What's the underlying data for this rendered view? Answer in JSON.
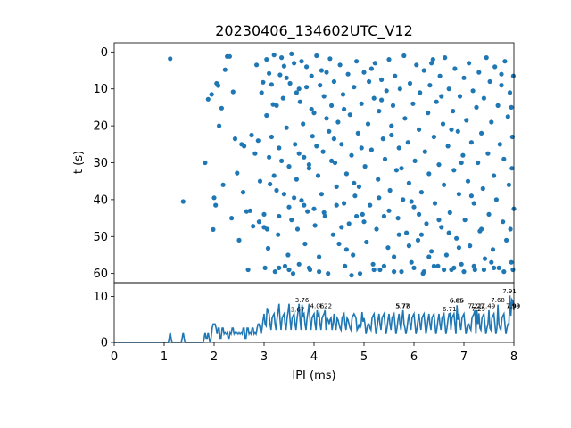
{
  "chart_data": [
    {
      "type": "scatter",
      "title": "20230406_134602UTC_V12",
      "ylabel": "t (s)",
      "xlim": [
        0,
        8
      ],
      "ylim": [
        62.5,
        -2.5
      ],
      "y_inverted": true,
      "y_ticks": [
        "0",
        "10",
        "20",
        "30",
        "40",
        "50",
        "60"
      ],
      "marker_color": "#1f77b4",
      "points": [
        [
          1.12,
          1.8
        ],
        [
          1.38,
          40.5
        ],
        [
          1.82,
          30.0
        ],
        [
          1.88,
          12.8
        ],
        [
          1.95,
          11.5
        ],
        [
          1.98,
          48.1
        ],
        [
          2.0,
          39.5
        ],
        [
          2.03,
          41.5
        ],
        [
          2.05,
          8.5
        ],
        [
          2.08,
          9.1
        ],
        [
          2.1,
          20.0
        ],
        [
          2.15,
          15.2
        ],
        [
          2.18,
          36.0
        ],
        [
          2.22,
          4.8
        ],
        [
          2.26,
          1.2
        ],
        [
          2.31,
          1.2
        ],
        [
          2.35,
          45.0
        ],
        [
          2.38,
          10.8
        ],
        [
          2.42,
          23.5
        ],
        [
          2.46,
          32.8
        ],
        [
          2.5,
          51.0
        ],
        [
          2.55,
          25.0
        ],
        [
          2.58,
          38.0
        ],
        [
          2.6,
          25.5
        ],
        [
          2.65,
          43.2
        ],
        [
          2.68,
          59.0
        ],
        [
          2.72,
          43.0
        ],
        [
          2.75,
          22.5
        ],
        [
          2.78,
          47.2
        ],
        [
          2.82,
          27.5
        ],
        [
          2.85,
          3.5
        ],
        [
          2.88,
          24.0
        ],
        [
          2.92,
          35.0
        ],
        [
          2.95,
          11.0
        ],
        [
          2.98,
          8.2
        ],
        [
          3.0,
          44.0
        ],
        [
          3.02,
          58.5
        ],
        [
          3.05,
          17.2
        ],
        [
          3.06,
          48.0
        ],
        [
          3.08,
          53.2
        ],
        [
          3.1,
          5.8
        ],
        [
          3.12,
          35.8
        ],
        [
          3.15,
          23.0
        ],
        [
          3.18,
          14.2
        ],
        [
          3.2,
          0.8
        ],
        [
          3.22,
          59.5
        ],
        [
          3.25,
          37.5
        ],
        [
          3.28,
          49.5
        ],
        [
          3.3,
          44.5
        ],
        [
          3.32,
          6.2
        ],
        [
          3.35,
          29.5
        ],
        [
          3.38,
          12.5
        ],
        [
          3.4,
          3.8
        ],
        [
          3.42,
          58.0
        ],
        [
          3.45,
          20.5
        ],
        [
          3.48,
          55.0
        ],
        [
          3.5,
          42.0
        ],
        [
          3.52,
          8.5
        ],
        [
          3.55,
          45.5
        ],
        [
          3.58,
          60.0
        ],
        [
          3.6,
          3.0
        ],
        [
          3.62,
          25.0
        ],
        [
          3.65,
          34.5
        ],
        [
          3.67,
          48.0
        ],
        [
          3.7,
          10.0
        ],
        [
          3.72,
          13.5
        ],
        [
          3.75,
          40.2
        ],
        [
          3.78,
          19.5
        ],
        [
          3.8,
          28.5
        ],
        [
          3.82,
          52.0
        ],
        [
          3.85,
          4.0
        ],
        [
          3.87,
          43.2
        ],
        [
          3.9,
          31.5
        ],
        [
          3.92,
          59.0
        ],
        [
          3.95,
          6.5
        ],
        [
          3.97,
          22.8
        ],
        [
          4.0,
          16.5
        ],
        [
          4.02,
          47.0
        ],
        [
          4.05,
          1.0
        ],
        [
          4.08,
          33.5
        ],
        [
          4.1,
          55.5
        ],
        [
          4.12,
          9.0
        ],
        [
          4.15,
          38.5
        ],
        [
          4.18,
          27.0
        ],
        [
          4.2,
          12.0
        ],
        [
          4.22,
          44.5
        ],
        [
          4.25,
          5.5
        ],
        [
          4.28,
          60.0
        ],
        [
          4.3,
          21.5
        ],
        [
          4.32,
          1.8
        ],
        [
          4.35,
          14.5
        ],
        [
          4.38,
          49.5
        ],
        [
          4.4,
          8.0
        ],
        [
          4.42,
          30.0
        ],
        [
          4.45,
          36.5
        ],
        [
          4.48,
          19.0
        ],
        [
          4.5,
          52.0
        ],
        [
          4.52,
          3.5
        ],
        [
          4.55,
          25.0
        ],
        [
          4.58,
          11.5
        ],
        [
          4.6,
          41.0
        ],
        [
          4.62,
          58.0
        ],
        [
          4.65,
          33.0
        ],
        [
          4.68,
          6.0
        ],
        [
          4.7,
          46.5
        ],
        [
          4.72,
          17.0
        ],
        [
          4.75,
          28.0
        ],
        [
          4.78,
          55.0
        ],
        [
          4.8,
          9.5
        ],
        [
          4.82,
          39.0
        ],
        [
          4.85,
          2.5
        ],
        [
          4.88,
          22.0
        ],
        [
          4.9,
          36.5
        ],
        [
          4.92,
          60.0
        ],
        [
          4.95,
          14.0
        ],
        [
          4.97,
          44.0
        ],
        [
          5.0,
          5.5
        ],
        [
          5.02,
          31.0
        ],
        [
          5.05,
          51.5
        ],
        [
          5.08,
          19.5
        ],
        [
          5.1,
          8.0
        ],
        [
          5.12,
          41.5
        ],
        [
          5.15,
          26.5
        ],
        [
          5.18,
          57.5
        ],
        [
          5.2,
          12.5
        ],
        [
          5.22,
          3.0
        ],
        [
          5.25,
          48.0
        ],
        [
          5.28,
          34.5
        ],
        [
          5.3,
          16.0
        ],
        [
          5.32,
          59.0
        ],
        [
          5.35,
          7.5
        ],
        [
          5.38,
          23.5
        ],
        [
          5.4,
          44.5
        ],
        [
          5.42,
          29.0
        ],
        [
          5.45,
          10.5
        ],
        [
          5.48,
          53.0
        ],
        [
          5.5,
          2.0
        ],
        [
          5.52,
          37.5
        ],
        [
          5.55,
          20.0
        ],
        [
          5.58,
          14.5
        ],
        [
          5.6,
          55.5
        ],
        [
          5.62,
          6.5
        ],
        [
          5.65,
          32.0
        ],
        [
          5.68,
          45.0
        ],
        [
          5.7,
          26.0
        ],
        [
          5.72,
          10.0
        ],
        [
          5.75,
          59.5
        ],
        [
          5.78,
          40.0
        ],
        [
          5.8,
          1.0
        ],
        [
          5.82,
          18.0
        ],
        [
          5.85,
          49.0
        ],
        [
          5.88,
          24.5
        ],
        [
          5.9,
          35.5
        ],
        [
          5.92,
          8.5
        ],
        [
          5.95,
          57.0
        ],
        [
          5.98,
          14.0
        ],
        [
          6.0,
          42.0
        ],
        [
          6.02,
          29.5
        ],
        [
          6.05,
          3.5
        ],
        [
          6.08,
          51.0
        ],
        [
          6.1,
          21.0
        ],
        [
          6.12,
          11.0
        ],
        [
          6.15,
          38.0
        ],
        [
          6.18,
          60.0
        ],
        [
          6.2,
          5.0
        ],
        [
          6.22,
          27.0
        ],
        [
          6.25,
          46.5
        ],
        [
          6.28,
          16.5
        ],
        [
          6.3,
          33.0
        ],
        [
          6.32,
          9.0
        ],
        [
          6.35,
          54.0
        ],
        [
          6.38,
          2.0
        ],
        [
          6.4,
          23.0
        ],
        [
          6.42,
          41.0
        ],
        [
          6.45,
          13.5
        ],
        [
          6.48,
          58.0
        ],
        [
          6.5,
          30.5
        ],
        [
          6.52,
          6.5
        ],
        [
          6.55,
          47.5
        ],
        [
          6.58,
          19.5
        ],
        [
          6.6,
          36.0
        ],
        [
          6.62,
          1.5
        ],
        [
          6.65,
          55.0
        ],
        [
          6.68,
          25.5
        ],
        [
          6.7,
          10.0
        ],
        [
          6.72,
          43.5
        ],
        [
          6.75,
          59.0
        ],
        [
          6.78,
          16.0
        ],
        [
          6.8,
          32.0
        ],
        [
          6.82,
          4.5
        ],
        [
          6.85,
          50.5
        ],
        [
          6.88,
          21.5
        ],
        [
          6.9,
          38.5
        ],
        [
          6.92,
          12.0
        ],
        [
          6.95,
          57.5
        ],
        [
          6.98,
          28.0
        ],
        [
          7.0,
          7.0
        ],
        [
          7.02,
          45.5
        ],
        [
          7.05,
          18.5
        ],
        [
          7.08,
          35.0
        ],
        [
          7.1,
          3.0
        ],
        [
          7.12,
          52.5
        ],
        [
          7.15,
          24.5
        ],
        [
          7.18,
          10.5
        ],
        [
          7.2,
          41.0
        ],
        [
          7.22,
          59.0
        ],
        [
          7.25,
          15.0
        ],
        [
          7.28,
          30.0
        ],
        [
          7.3,
          5.5
        ],
        [
          7.32,
          48.5
        ],
        [
          7.35,
          22.0
        ],
        [
          7.38,
          37.0
        ],
        [
          7.4,
          12.5
        ],
        [
          7.42,
          56.0
        ],
        [
          7.45,
          1.5
        ],
        [
          7.48,
          27.5
        ],
        [
          7.5,
          44.0
        ],
        [
          7.52,
          8.0
        ],
        [
          7.55,
          19.0
        ],
        [
          7.58,
          53.5
        ],
        [
          7.6,
          33.5
        ],
        [
          7.62,
          4.0
        ],
        [
          7.65,
          40.0
        ],
        [
          7.68,
          14.5
        ],
        [
          7.7,
          58.5
        ],
        [
          7.72,
          25.0
        ],
        [
          7.75,
          9.0
        ],
        [
          7.78,
          46.0
        ],
        [
          7.8,
          29.0
        ],
        [
          7.82,
          2.5
        ],
        [
          7.85,
          51.0
        ],
        [
          7.88,
          17.5
        ],
        [
          7.9,
          36.0
        ],
        [
          7.92,
          11.0
        ],
        [
          7.95,
          57.0
        ],
        [
          7.97,
          23.0
        ],
        [
          8.0,
          42.5
        ],
        [
          7.99,
          6.5
        ],
        [
          7.96,
          31.5
        ],
        [
          7.93,
          48.0
        ],
        [
          3.05,
          2.0
        ],
        [
          3.15,
          8.8
        ],
        [
          3.25,
          14.5
        ],
        [
          3.35,
          1.5
        ],
        [
          3.45,
          7.0
        ],
        [
          3.55,
          0.5
        ],
        [
          3.65,
          11.0
        ],
        [
          3.75,
          2.5
        ],
        [
          3.85,
          9.5
        ],
        [
          3.95,
          15.5
        ],
        [
          4.05,
          25.5
        ],
        [
          4.15,
          5.0
        ],
        [
          4.25,
          18.0
        ],
        [
          4.35,
          29.5
        ],
        [
          4.45,
          41.5
        ],
        [
          4.55,
          47.5
        ],
        [
          4.65,
          53.5
        ],
        [
          4.75,
          60.5
        ],
        [
          4.85,
          44.5
        ],
        [
          4.95,
          26.0
        ],
        [
          3.3,
          58.5
        ],
        [
          3.5,
          59.0
        ],
        [
          3.7,
          57.5
        ],
        [
          3.9,
          58.5
        ],
        [
          4.1,
          59.5
        ],
        [
          5.2,
          59.0
        ],
        [
          5.4,
          58.0
        ],
        [
          5.6,
          59.5
        ],
        [
          6.0,
          58.5
        ],
        [
          6.2,
          59.5
        ],
        [
          6.4,
          58.0
        ],
        [
          6.6,
          59.0
        ],
        [
          6.8,
          58.5
        ],
        [
          7.0,
          59.5
        ],
        [
          7.2,
          58.0
        ],
        [
          7.4,
          59.0
        ],
        [
          7.6,
          58.5
        ],
        [
          7.8,
          59.5
        ],
        [
          7.98,
          59.0
        ],
        [
          3.1,
          28.5
        ],
        [
          3.3,
          26.0
        ],
        [
          3.5,
          31.0
        ],
        [
          3.7,
          27.5
        ],
        [
          3.9,
          30.5
        ],
        [
          5.15,
          4.5
        ],
        [
          5.35,
          13.0
        ],
        [
          5.55,
          22.5
        ],
        [
          5.75,
          31.5
        ],
        [
          5.95,
          40.5
        ],
        [
          6.15,
          49.5
        ],
        [
          6.35,
          3.0
        ],
        [
          6.55,
          12.0
        ],
        [
          6.75,
          21.0
        ],
        [
          6.95,
          30.0
        ],
        [
          7.15,
          39.0
        ],
        [
          7.35,
          48.0
        ],
        [
          7.55,
          57.0
        ],
        [
          7.75,
          6.0
        ],
        [
          7.95,
          15.0
        ],
        [
          2.9,
          46.0
        ],
        [
          3.0,
          47.5
        ],
        [
          3.2,
          33.5
        ],
        [
          3.4,
          38.5
        ],
        [
          3.6,
          39.5
        ],
        [
          3.8,
          41.5
        ],
        [
          4.0,
          42.5
        ],
        [
          4.2,
          43.5
        ],
        [
          4.4,
          23.5
        ],
        [
          4.6,
          15.5
        ],
        [
          4.8,
          35.5
        ],
        [
          5.0,
          46.0
        ],
        [
          5.3,
          39.5
        ],
        [
          5.5,
          43.0
        ],
        [
          5.7,
          49.5
        ],
        [
          5.9,
          52.5
        ],
        [
          6.1,
          44.0
        ],
        [
          6.3,
          55.5
        ],
        [
          6.5,
          45.5
        ],
        [
          6.7,
          49.0
        ],
        [
          6.9,
          53.0
        ]
      ]
    },
    {
      "type": "line",
      "xlabel": "IPI (ms)",
      "ylabel": "",
      "xlim": [
        0,
        8
      ],
      "ylim": [
        0,
        13
      ],
      "x_ticks": [
        "0",
        "1",
        "2",
        "3",
        "4",
        "5",
        "6",
        "7",
        "8"
      ],
      "y_ticks": [
        "0",
        "10"
      ],
      "line_color": "#1f77b4",
      "peak_labels": [
        {
          "x": 3.76,
          "y": 8.5,
          "text": "3.76"
        },
        {
          "x": 3.67,
          "y": 6.5,
          "text": "3.67"
        },
        {
          "x": 4.06,
          "y": 7.3,
          "text": "4.06"
        },
        {
          "x": 4.22,
          "y": 7.3,
          "text": "4.22"
        },
        {
          "x": 5.77,
          "y": 7.3,
          "text": "5.77"
        },
        {
          "x": 5.78,
          "y": 7.3,
          "text": "5.78"
        },
        {
          "x": 6.71,
          "y": 6.6,
          "text": "6.71"
        },
        {
          "x": 6.85,
          "y": 8.4,
          "text": "6.85"
        },
        {
          "x": 6.86,
          "y": 8.4,
          "text": "6.86"
        },
        {
          "x": 7.22,
          "y": 7.3,
          "text": "7.22"
        },
        {
          "x": 7.27,
          "y": 7.3,
          "text": "7.27"
        },
        {
          "x": 7.29,
          "y": 6.6,
          "text": "7.29"
        },
        {
          "x": 7.49,
          "y": 7.3,
          "text": "7.49"
        },
        {
          "x": 7.68,
          "y": 8.5,
          "text": "7.68"
        },
        {
          "x": 7.91,
          "y": 10.5,
          "text": "7.91"
        },
        {
          "x": 7.98,
          "y": 7.3,
          "text": "7.98"
        },
        {
          "x": 7.99,
          "y": 7.3,
          "text": "7.99"
        }
      ]
    }
  ]
}
